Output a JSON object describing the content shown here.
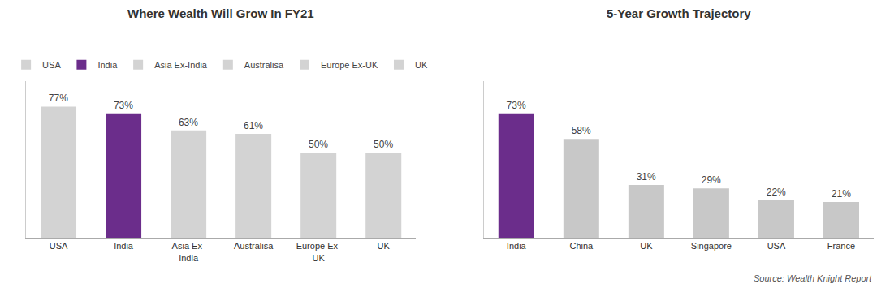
{
  "chart_data": [
    {
      "type": "bar",
      "title": "Where Wealth Will Grow In FY21",
      "categories": [
        "USA",
        "India",
        "Asia Ex-\nIndia",
        "Australisa",
        "Europe Ex-\nUK",
        "UK"
      ],
      "series": [
        {
          "name": "USA",
          "color": "#d3d3d3",
          "values": [
            77,
            null,
            null,
            null,
            null,
            null
          ],
          "value_labels": [
            "77%",
            null,
            null,
            null,
            null,
            null
          ]
        },
        {
          "name": "India",
          "color": "#6b2d8b",
          "values": [
            null,
            73,
            null,
            null,
            null,
            null
          ],
          "value_labels": [
            null,
            "73%",
            null,
            null,
            null,
            null
          ]
        },
        {
          "name": "Asia Ex-India",
          "color": "#d3d3d3",
          "values": [
            null,
            null,
            63,
            null,
            null,
            null
          ],
          "value_labels": [
            null,
            null,
            "63%",
            null,
            null,
            null
          ]
        },
        {
          "name": "Australisa",
          "color": "#d3d3d3",
          "values": [
            null,
            null,
            null,
            61,
            null,
            null
          ],
          "value_labels": [
            null,
            null,
            null,
            "61%",
            null,
            null
          ]
        },
        {
          "name": "Europe Ex-UK",
          "color": "#d3d3d3",
          "values": [
            null,
            null,
            null,
            null,
            50,
            null
          ],
          "value_labels": [
            null,
            null,
            null,
            null,
            "50%",
            null
          ]
        },
        {
          "name": "UK",
          "color": "#d3d3d3",
          "values": [
            null,
            null,
            null,
            null,
            null,
            50
          ],
          "value_labels": [
            null,
            null,
            null,
            null,
            null,
            "50%"
          ]
        }
      ],
      "ylim": [
        0,
        92
      ],
      "grid": false,
      "legend": "top",
      "data_labels": true,
      "tick_labels": "x"
    },
    {
      "type": "bar",
      "title": "5-Year Growth Trajectory",
      "categories": [
        "India",
        "China",
        "UK",
        "Singapore",
        "USA",
        "France"
      ],
      "values": [
        73,
        58,
        31,
        29,
        22,
        21
      ],
      "value_labels": [
        "73%",
        "58%",
        "31%",
        "29%",
        "22%",
        "21%"
      ],
      "colors": [
        "#6b2d8b",
        "#c8c8c8",
        "#c8c8c8",
        "#c8c8c8",
        "#c8c8c8",
        "#c8c8c8"
      ],
      "ylim": [
        0,
        92
      ],
      "grid": false,
      "data_labels": true,
      "tick_labels": "x",
      "annotation": "Source: Wealth Knight Report"
    }
  ]
}
